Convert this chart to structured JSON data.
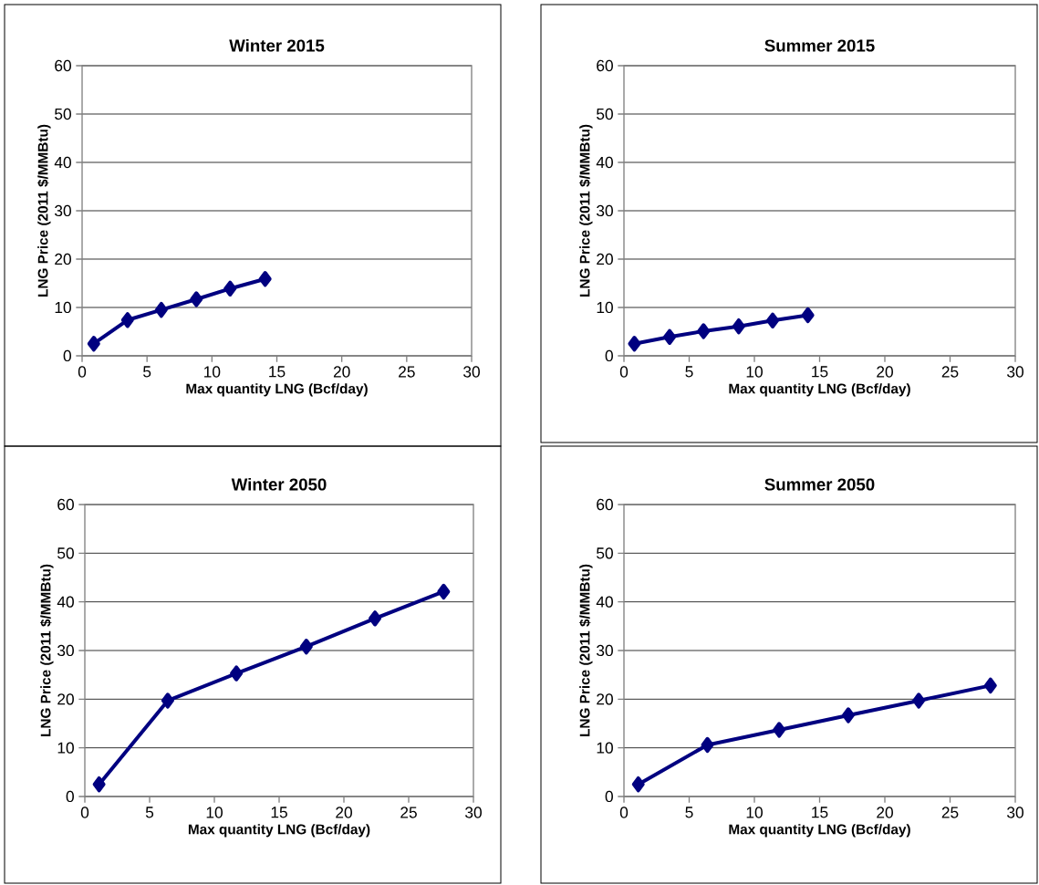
{
  "chart_data": [
    {
      "type": "line",
      "title": "Winter 2015",
      "xlabel": "Max quantity LNG (Bcf/day)",
      "ylabel": "LNG Price (2011 $/MMBtu)",
      "x": [
        0.9,
        3.5,
        6.1,
        8.8,
        11.4,
        14.1
      ],
      "series": [
        {
          "color": "#000080",
          "values": [
            2.5,
            7.4,
            9.5,
            11.7,
            13.9,
            15.9
          ]
        }
      ],
      "xlim": [
        0,
        30
      ],
      "ylim": [
        0,
        60
      ],
      "xticks": [
        0,
        5,
        10,
        15,
        20,
        25,
        30
      ],
      "yticks": [
        0,
        10,
        20,
        30,
        40,
        50,
        60
      ],
      "grid": "y",
      "marker": "diamond",
      "line_style": "solid"
    },
    {
      "type": "line",
      "title": "Summer 2015",
      "xlabel": "Max quantity LNG (Bcf/day)",
      "ylabel": "LNG Price (2011 $/MMBtu)",
      "x": [
        0.8,
        3.5,
        6.1,
        8.8,
        11.4,
        14.1
      ],
      "series": [
        {
          "color": "#000080",
          "values": [
            2.5,
            3.9,
            5.1,
            6.1,
            7.3,
            8.4
          ]
        }
      ],
      "xlim": [
        0,
        30
      ],
      "ylim": [
        0,
        60
      ],
      "xticks": [
        0,
        5,
        10,
        15,
        20,
        25,
        30
      ],
      "yticks": [
        0,
        10,
        20,
        30,
        40,
        50,
        60
      ],
      "grid": "y",
      "marker": "diamond",
      "line_style": "solid"
    },
    {
      "type": "line",
      "title": "Winter 2050",
      "xlabel": "Max quantity LNG (Bcf/day)",
      "ylabel": "LNG Price (2011 $/MMBtu)",
      "x": [
        1.1,
        6.4,
        11.7,
        17.1,
        22.4,
        27.7
      ],
      "series": [
        {
          "color": "#000080",
          "values": [
            2.5,
            19.7,
            25.3,
            30.8,
            36.6,
            42.1
          ]
        }
      ],
      "xlim": [
        0,
        30
      ],
      "ylim": [
        0,
        60
      ],
      "xticks": [
        0,
        5,
        10,
        15,
        20,
        25,
        30
      ],
      "yticks": [
        0,
        10,
        20,
        30,
        40,
        50,
        60
      ],
      "grid": "y",
      "marker": "diamond",
      "line_style": "solid"
    },
    {
      "type": "line",
      "title": "Summer 2050",
      "xlabel": "Max quantity LNG (Bcf/day)",
      "ylabel": "LNG Price (2011 $/MMBtu)",
      "x": [
        1.1,
        6.4,
        11.9,
        17.2,
        22.6,
        28.1
      ],
      "series": [
        {
          "color": "#000080",
          "values": [
            2.5,
            10.6,
            13.7,
            16.7,
            19.7,
            22.8
          ]
        }
      ],
      "xlim": [
        0,
        30
      ],
      "ylim": [
        0,
        60
      ],
      "xticks": [
        0,
        5,
        10,
        15,
        20,
        25,
        30
      ],
      "yticks": [
        0,
        10,
        20,
        30,
        40,
        50,
        60
      ],
      "grid": "y",
      "marker": "diamond",
      "line_style": "solid"
    }
  ]
}
